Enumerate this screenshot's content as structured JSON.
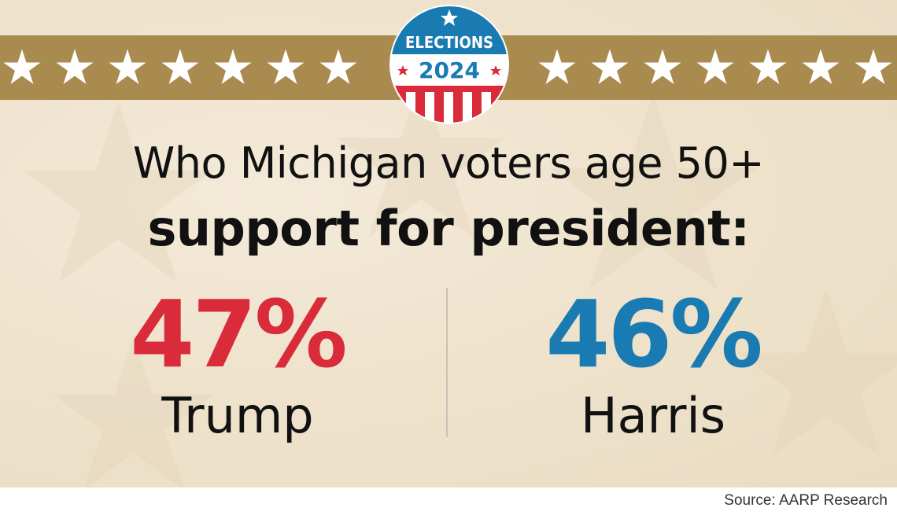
{
  "badge": {
    "top_text": "ELECTIONS",
    "year": "2024"
  },
  "headline": {
    "line1": "Who Michigan voters age 50+",
    "line2": "support for president:"
  },
  "results": [
    {
      "percent": "47%",
      "candidate": "Trump",
      "color": "#d92b3a"
    },
    {
      "percent": "46%",
      "candidate": "Harris",
      "color": "#1a7bb3"
    }
  ],
  "source": "Source: AARP Research",
  "colors": {
    "band": "#a98a4f",
    "badge_blue": "#1a7bb3",
    "badge_red": "#d92b3a"
  }
}
